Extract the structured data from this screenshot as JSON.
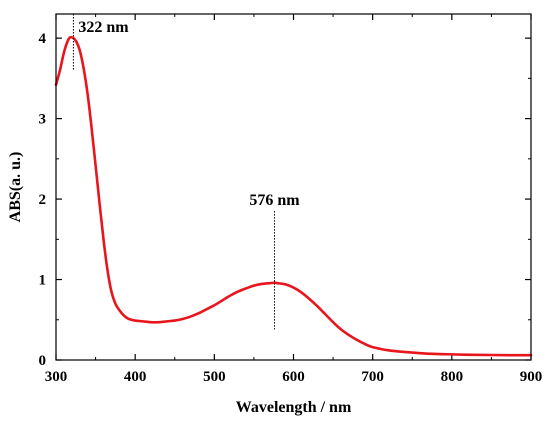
{
  "chart_data": {
    "type": "line",
    "xlabel": "Wavelength / nm",
    "ylabel": "ABS(a. u.)",
    "xlim": [
      300,
      900
    ],
    "ylim": [
      0,
      4.3
    ],
    "x_ticks": [
      300,
      400,
      500,
      600,
      700,
      800,
      900
    ],
    "y_ticks": [
      0,
      1,
      2,
      3,
      4
    ],
    "grid": false,
    "series_color": "#e8161c",
    "annotation_color": "#000000",
    "series": [
      {
        "x": [
          300,
          305,
          310,
          315,
          318,
          322,
          326,
          330,
          335,
          340,
          345,
          350,
          355,
          360,
          365,
          370,
          375,
          380,
          385,
          390,
          395,
          400,
          410,
          420,
          430,
          440,
          450,
          460,
          470,
          480,
          490,
          500,
          510,
          520,
          530,
          540,
          550,
          560,
          570,
          576,
          580,
          590,
          600,
          610,
          620,
          630,
          640,
          650,
          660,
          670,
          680,
          690,
          700,
          720,
          740,
          760,
          780,
          800,
          825,
          850,
          875,
          900
        ],
        "values": [
          3.42,
          3.6,
          3.82,
          3.97,
          4.01,
          4.0,
          3.95,
          3.85,
          3.62,
          3.3,
          2.88,
          2.42,
          1.95,
          1.5,
          1.12,
          0.85,
          0.7,
          0.62,
          0.56,
          0.52,
          0.5,
          0.49,
          0.48,
          0.47,
          0.47,
          0.48,
          0.49,
          0.51,
          0.54,
          0.58,
          0.63,
          0.68,
          0.74,
          0.8,
          0.85,
          0.89,
          0.925,
          0.945,
          0.955,
          0.96,
          0.955,
          0.94,
          0.9,
          0.84,
          0.76,
          0.67,
          0.57,
          0.47,
          0.38,
          0.31,
          0.25,
          0.2,
          0.16,
          0.12,
          0.1,
          0.085,
          0.075,
          0.07,
          0.065,
          0.062,
          0.06,
          0.06
        ]
      }
    ],
    "annotations": [
      {
        "x": 322,
        "top_y": 4.3,
        "bottom_y": 3.6,
        "label": "322 nm"
      },
      {
        "x": 576,
        "top_y": 1.85,
        "bottom_y": 0.38,
        "label": "576 nm"
      }
    ]
  }
}
